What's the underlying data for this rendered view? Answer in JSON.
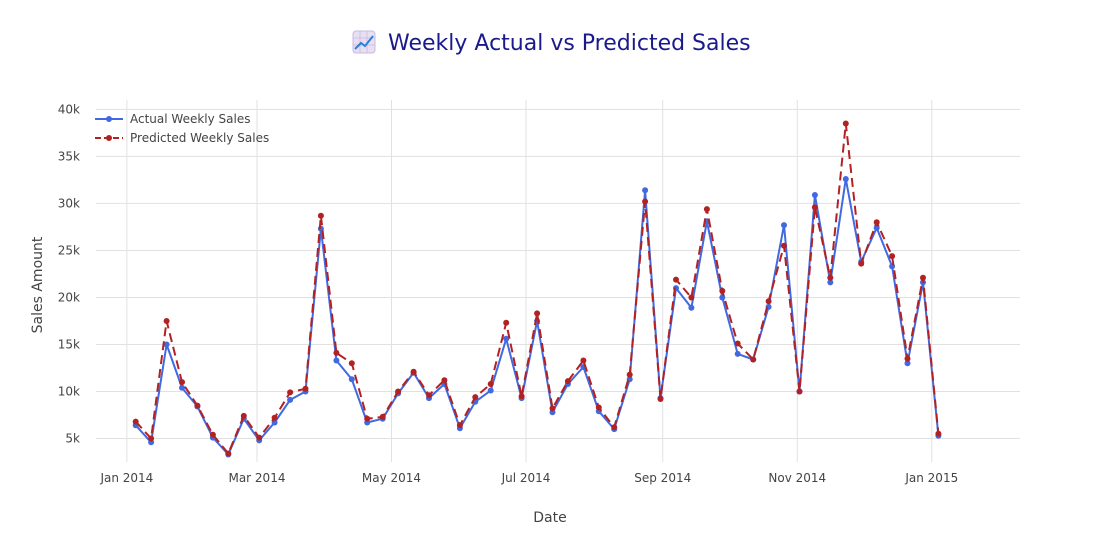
{
  "chart_data": {
    "type": "line",
    "title": "Weekly Actual vs Predicted Sales",
    "title_icon": "chart-increasing-icon",
    "xlabel": "Date",
    "ylabel": "Sales Amount",
    "ylim": [
      2500,
      41000
    ],
    "xlim": [
      "2013-12-18",
      "2015-02-10"
    ],
    "grid": true,
    "legend_position": "top-left",
    "x_ticks": [
      {
        "date": "2014-01-01",
        "label": "Jan 2014"
      },
      {
        "date": "2014-03-01",
        "label": "Mar 2014"
      },
      {
        "date": "2014-05-01",
        "label": "May 2014"
      },
      {
        "date": "2014-07-01",
        "label": "Jul 2014"
      },
      {
        "date": "2014-09-01",
        "label": "Sep 2014"
      },
      {
        "date": "2014-11-01",
        "label": "Nov 2014"
      },
      {
        "date": "2015-01-01",
        "label": "Jan 2015"
      }
    ],
    "y_ticks": [
      {
        "value": 5000,
        "label": "5k"
      },
      {
        "value": 10000,
        "label": "10k"
      },
      {
        "value": 15000,
        "label": "15k"
      },
      {
        "value": 20000,
        "label": "20k"
      },
      {
        "value": 25000,
        "label": "25k"
      },
      {
        "value": 30000,
        "label": "30k"
      },
      {
        "value": 35000,
        "label": "35k"
      },
      {
        "value": 40000,
        "label": "40k"
      }
    ],
    "x": [
      "2014-01-05",
      "2014-01-12",
      "2014-01-19",
      "2014-01-26",
      "2014-02-02",
      "2014-02-09",
      "2014-02-16",
      "2014-02-23",
      "2014-03-02",
      "2014-03-09",
      "2014-03-16",
      "2014-03-23",
      "2014-03-30",
      "2014-04-06",
      "2014-04-13",
      "2014-04-20",
      "2014-04-27",
      "2014-05-04",
      "2014-05-11",
      "2014-05-18",
      "2014-05-25",
      "2014-06-01",
      "2014-06-08",
      "2014-06-15",
      "2014-06-22",
      "2014-06-29",
      "2014-07-06",
      "2014-07-13",
      "2014-07-20",
      "2014-07-27",
      "2014-08-03",
      "2014-08-10",
      "2014-08-17",
      "2014-08-24",
      "2014-08-31",
      "2014-09-07",
      "2014-09-14",
      "2014-09-21",
      "2014-09-28",
      "2014-10-05",
      "2014-10-12",
      "2014-10-19",
      "2014-10-26",
      "2014-11-02",
      "2014-11-09",
      "2014-11-16",
      "2014-11-23",
      "2014-11-30",
      "2014-12-07",
      "2014-12-14",
      "2014-12-21",
      "2014-12-28",
      "2015-01-04"
    ],
    "series": [
      {
        "name": "Actual Weekly Sales",
        "color": "#4169e1",
        "line_style": "solid",
        "values": [
          6400,
          4600,
          15000,
          10400,
          8400,
          5100,
          3300,
          7100,
          4800,
          6700,
          9100,
          10000,
          27300,
          13300,
          11300,
          6700,
          7100,
          9800,
          12000,
          9300,
          10800,
          6100,
          8900,
          10100,
          15600,
          9300,
          17500,
          7800,
          10800,
          12600,
          7900,
          6000,
          11300,
          31400,
          9300,
          21000,
          18900,
          28100,
          20000,
          14000,
          13400,
          19000,
          27700,
          10000,
          30900,
          21600,
          32600,
          23800,
          27400,
          23300,
          13000,
          21600,
          5300
        ]
      },
      {
        "name": "Predicted Weekly Sales",
        "color": "#b22222",
        "line_style": "dashed",
        "values": [
          6800,
          5000,
          17500,
          11000,
          8500,
          5400,
          3400,
          7400,
          5100,
          7200,
          9900,
          10300,
          28700,
          14100,
          13000,
          7100,
          7300,
          10000,
          12100,
          9600,
          11200,
          6400,
          9400,
          10800,
          17300,
          9500,
          18300,
          8200,
          11100,
          13300,
          8300,
          6200,
          11800,
          30200,
          9200,
          21900,
          20000,
          29400,
          20700,
          15100,
          13400,
          19600,
          25500,
          10000,
          29600,
          22100,
          38500,
          23600,
          28000,
          24400,
          13500,
          22100,
          5500
        ]
      }
    ]
  }
}
